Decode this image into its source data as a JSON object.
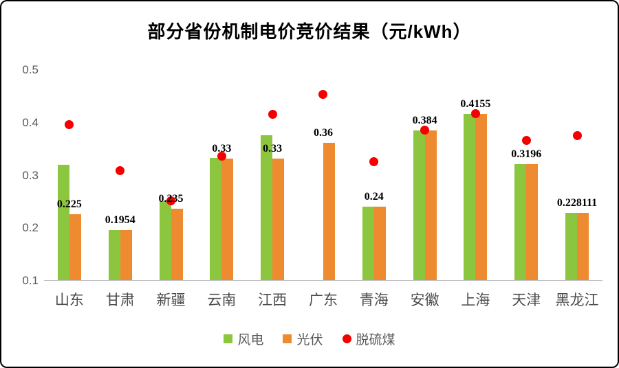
{
  "chart_data": {
    "type": "bar",
    "subtype": "grouped bars with scatter overlay",
    "title": "部分省份机制电价竞价结果（元/kWh）",
    "categories": [
      "山东",
      "甘肃",
      "新疆",
      "云南",
      "江西",
      "广东",
      "青海",
      "安徽",
      "上海",
      "天津",
      "黑龙江"
    ],
    "series": [
      {
        "name": "风电",
        "type": "bar",
        "color": "#8CC63E",
        "values": [
          0.319,
          0.1954,
          0.25,
          0.332,
          0.375,
          null,
          0.24,
          0.384,
          0.4155,
          0.3196,
          0.228
        ]
      },
      {
        "name": "光伏",
        "type": "bar",
        "color": "#EE8B30",
        "values": [
          0.225,
          0.1954,
          0.235,
          0.33,
          0.33,
          0.36,
          0.24,
          0.384,
          0.4155,
          0.3196,
          0.228111
        ]
      },
      {
        "name": "脱硫煤",
        "type": "scatter",
        "color": "#F40000",
        "values": [
          0.3949,
          0.3078,
          0.25,
          0.3358,
          0.4143,
          0.453,
          0.3247,
          0.3844,
          0.4155,
          0.3655,
          0.374
        ]
      }
    ],
    "data_labels": [
      "0.225",
      "0.1954",
      "0.235",
      "0.33",
      "0.33",
      "0.36",
      "0.24",
      "0.384",
      "0.4155",
      "0.3196",
      "0.228111"
    ],
    "y_ticks": [
      "0.5",
      "0.4",
      "0.3",
      "0.2",
      "0.1"
    ],
    "ylim": [
      0.1,
      0.5
    ],
    "grid": false,
    "legend_position": "bottom",
    "axis_line_color": "#BFBFBF",
    "background_color": "#FFFFFF",
    "border_color": "#000000"
  }
}
